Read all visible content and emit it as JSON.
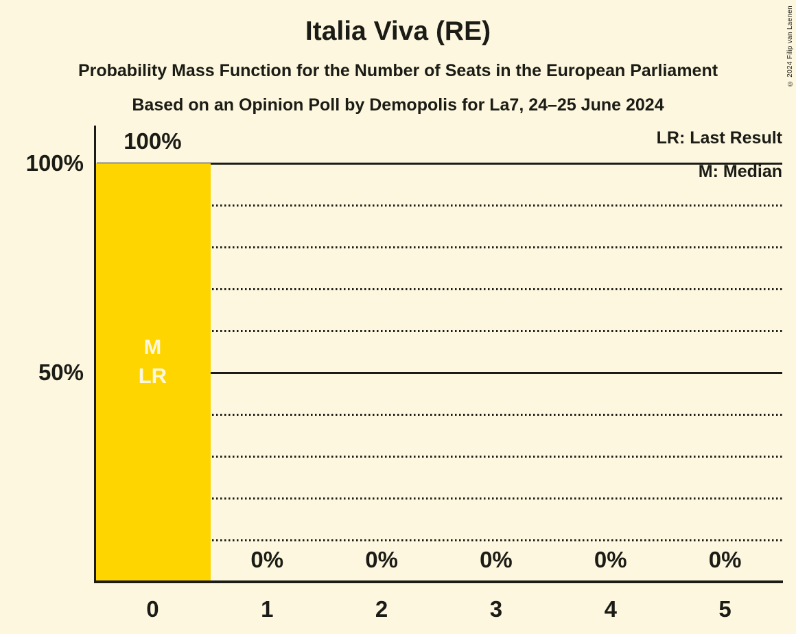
{
  "header": {
    "title": "Italia Viva (RE)",
    "subtitle_line1": "Probability Mass Function for the Number of Seats in the European Parliament",
    "subtitle_line2": "Based on an Opinion Poll by Demopolis for La7, 24–25 June 2024"
  },
  "copyright": "© 2024 Filip van Laenen",
  "legend": {
    "last_result": "LR: Last Result",
    "median": "M: Median"
  },
  "colors": {
    "background": "#FCF7DE",
    "bar": "#FFD500",
    "ink": "#1C1C16",
    "bar_annotation_text": "#FCF7DE"
  },
  "chart_data": {
    "type": "bar",
    "title": "Italia Viva (RE)",
    "x_categories": [
      "0",
      "1",
      "2",
      "3",
      "4",
      "5"
    ],
    "values_percent": [
      100,
      0,
      0,
      0,
      0,
      0
    ],
    "value_labels": [
      "100%",
      "0%",
      "0%",
      "0%",
      "0%",
      "0%"
    ],
    "bar_annotations": [
      {
        "category_index": 0,
        "lines": [
          "M",
          "LR"
        ]
      }
    ],
    "y_axis_ticks": [
      {
        "label": "100%",
        "value": 100
      },
      {
        "label": "50%",
        "value": 50
      }
    ],
    "ylim": [
      0,
      100
    ],
    "gridlines": {
      "solid": [
        100,
        50
      ],
      "dotted": [
        90,
        80,
        70,
        60,
        40,
        30,
        20,
        10
      ]
    },
    "legend_position": "top-right",
    "grid": true
  }
}
